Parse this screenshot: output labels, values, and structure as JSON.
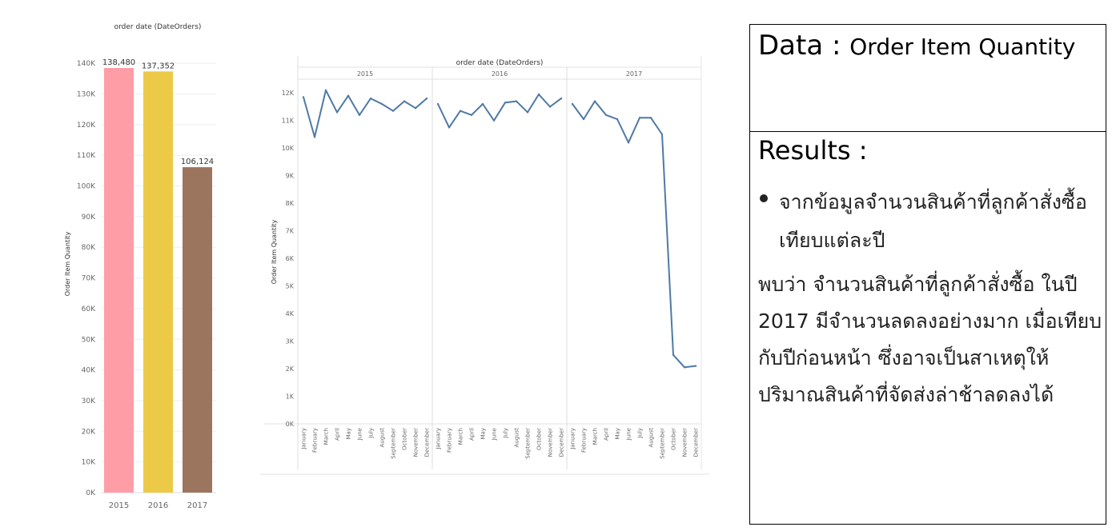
{
  "chart_data": [
    {
      "type": "bar",
      "title": "order date (DateOrders)",
      "ylabel": "Order Item Quantity",
      "categories": [
        "2015",
        "2016",
        "2017"
      ],
      "values": [
        138480,
        137352,
        106124
      ],
      "value_labels": [
        "138,480",
        "137,352",
        "106,124"
      ],
      "colors": [
        "#ff9da7",
        "#edc948",
        "#9c755f"
      ],
      "ylim": [
        0,
        145000
      ],
      "yticks": [
        0,
        10000,
        20000,
        30000,
        40000,
        50000,
        60000,
        70000,
        80000,
        90000,
        100000,
        110000,
        120000,
        130000,
        140000
      ],
      "ytick_labels": [
        "0K",
        "10K",
        "20K",
        "30K",
        "40K",
        "50K",
        "60K",
        "70K",
        "80K",
        "90K",
        "100K",
        "110K",
        "120K",
        "130K",
        "140K"
      ],
      "grid": true
    },
    {
      "type": "line",
      "title": "order date (DateOrders)",
      "ylabel": "Order Item Quantity",
      "color": "#4e79a7",
      "ylim": [
        0,
        12500
      ],
      "yticks": [
        0,
        1000,
        2000,
        3000,
        4000,
        5000,
        6000,
        7000,
        8000,
        9000,
        10000,
        11000,
        12000
      ],
      "ytick_labels": [
        "0K",
        "1K",
        "2K",
        "3K",
        "4K",
        "5K",
        "6K",
        "7K",
        "8K",
        "9K",
        "10K",
        "11K",
        "12K"
      ],
      "months": [
        "January",
        "February",
        "March",
        "April",
        "May",
        "June",
        "July",
        "August",
        "September",
        "October",
        "November",
        "December"
      ],
      "panels": [
        {
          "year": "2015",
          "values": [
            11850,
            10400,
            12100,
            11300,
            11900,
            11200,
            11800,
            11600,
            11350,
            11700,
            11450,
            11800
          ]
        },
        {
          "year": "2016",
          "values": [
            11600,
            10750,
            11350,
            11200,
            11600,
            11000,
            11650,
            11700,
            11300,
            11950,
            11500,
            11800
          ]
        },
        {
          "year": "2017",
          "values": [
            11600,
            11050,
            11700,
            11200,
            11050,
            10200,
            11100,
            11100,
            10500,
            2500,
            2050,
            2100
          ]
        }
      ]
    }
  ],
  "data_box": {
    "prefix": "Data : ",
    "label": "Order Item Quantity"
  },
  "results_box": {
    "heading": "Results :",
    "bullet": "จากข้อมูลจำนวนสินค้าที่ลูกค้าสั่งซื้อ เทียบแต่ละปี",
    "body": "พบว่า จำนวนสินค้าที่ลูกค้าสั่งซื้อ ในปี 2017 มีจำนวนลดลงอย่างมาก เมื่อเทียบกับปีก่อนหน้า ซึ่งอาจเป็นสาเหตุให้ปริมาณสินค้าที่จัดส่งล่าช้าลดลงได้"
  }
}
